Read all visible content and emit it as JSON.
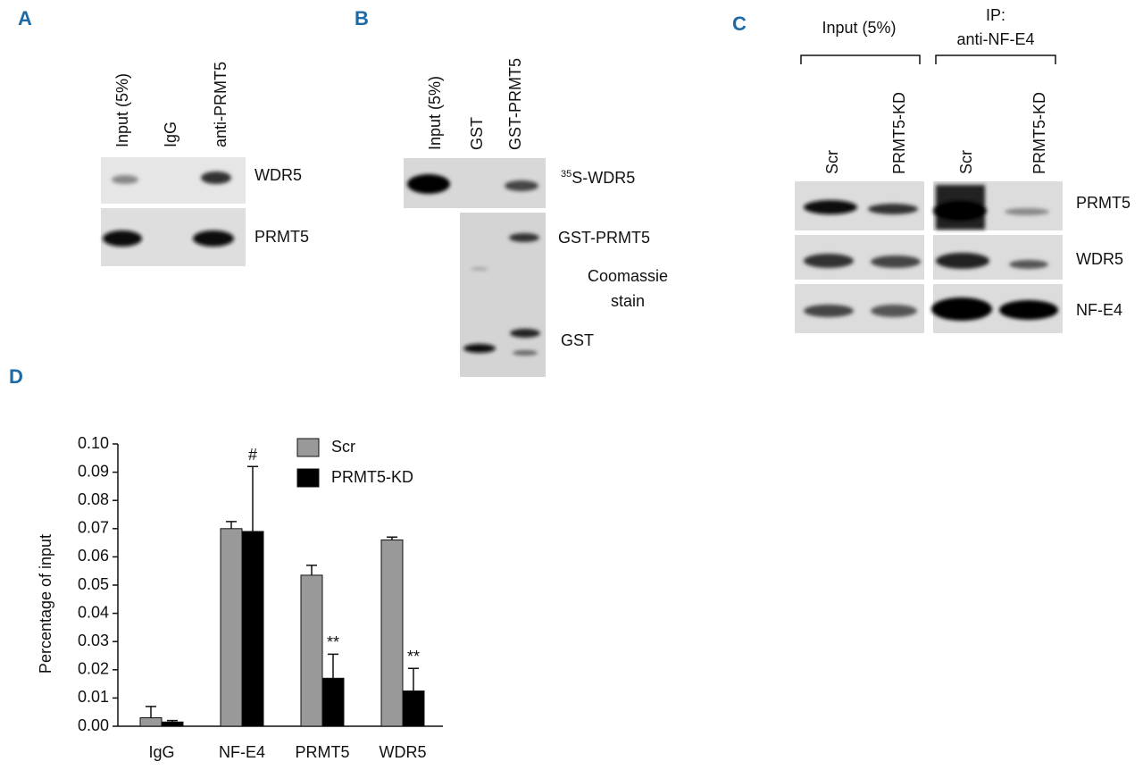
{
  "panels": {
    "A": {
      "label": "A",
      "lanes": [
        "Input (5%)",
        "IgG",
        "anti-PRMT5"
      ],
      "blots": [
        "WDR5",
        "PRMT5"
      ]
    },
    "B": {
      "label": "B",
      "lanes": [
        "Input (5%)",
        "GST",
        "GST-PRMT5"
      ],
      "blot": {
        "isotope": "35",
        "name": "S-WDR5"
      },
      "coomassie": [
        "GST-PRMT5",
        "Coomassie",
        "stain",
        "GST"
      ]
    },
    "C": {
      "label": "C",
      "groups": [
        {
          "title": [
            "Input (5%)"
          ]
        },
        {
          "title": [
            "IP:",
            "anti-NF-E4"
          ]
        }
      ],
      "lanes": [
        "Scr",
        "PRMT5-KD",
        "Scr",
        "PRMT5-KD"
      ],
      "blots": [
        "PRMT5",
        "WDR5",
        "NF-E4"
      ]
    }
  },
  "chart_data": {
    "type": "bar",
    "panel_label": "D",
    "y_label": "Percentage of input",
    "categories": [
      "IgG",
      "NF-E4",
      "PRMT5",
      "WDR5"
    ],
    "series": [
      {
        "name": "Scr",
        "color": "#999999",
        "values": [
          0.003,
          0.07,
          0.0535,
          0.066
        ],
        "errors": [
          0.004,
          0.0025,
          0.0035,
          0.001
        ]
      },
      {
        "name": "PRMT5-KD",
        "color": "#000000",
        "values": [
          0.0015,
          0.069,
          0.017,
          0.0125
        ],
        "errors": [
          0.0005,
          0.023,
          0.0085,
          0.008
        ]
      }
    ],
    "annotations": [
      {
        "text": "#",
        "category": 1,
        "series": 1
      },
      {
        "text": "**",
        "category": 2,
        "series": 1
      },
      {
        "text": "**",
        "category": 3,
        "series": 1
      }
    ],
    "ylim": [
      0,
      0.1
    ],
    "yticks": [
      {
        "value": 0,
        "label": "0.00"
      },
      0.01,
      0.02,
      0.03,
      0.04,
      0.05,
      0.06,
      0.07,
      0.08,
      0.09,
      {
        "value": 0.1,
        "label": "0.10"
      }
    ],
    "legend": "top-right"
  }
}
